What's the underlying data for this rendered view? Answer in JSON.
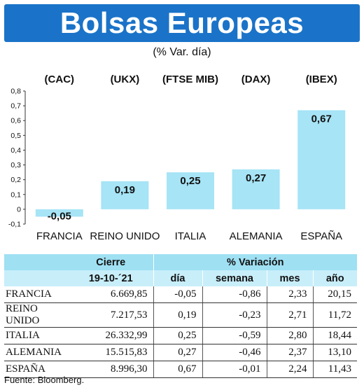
{
  "header": {
    "title": "Bolsas Europeas",
    "subtitle": "(% Var. día)"
  },
  "chart_data": {
    "type": "bar",
    "title": "Bolsas Europeas",
    "subtitle": "(% Var. día)",
    "categories": [
      "FRANCIA",
      "REINO UNIDO",
      "ITALIA",
      "ALEMANIA",
      "ESPAÑA"
    ],
    "index_labels": [
      "(CAC)",
      "(UKX)",
      "(FTSE MIB)",
      "(DAX)",
      "(IBEX)"
    ],
    "values": [
      -0.05,
      0.19,
      0.25,
      0.27,
      0.67
    ],
    "value_labels": [
      "-0,05",
      "0,19",
      "0,25",
      "0,27",
      "0,67"
    ],
    "ylim": [
      -0.1,
      0.8
    ],
    "yticks": [
      "-0,1",
      "0",
      "0,1",
      "0,2",
      "0,3",
      "0,4",
      "0,5",
      "0,6",
      "0,7",
      "0,8"
    ],
    "bar_color": "#a6e4f6",
    "grid": false
  },
  "table": {
    "headers": {
      "cierre": "Cierre",
      "variacion": "% Variación",
      "fecha": "19-10-´21",
      "dia": "día",
      "semana": "semana",
      "mes": "mes",
      "ano": "año"
    },
    "rows": [
      {
        "country": "FRANCIA",
        "cierre": "6.669,85",
        "dia": "-0,05",
        "semana": "-0,86",
        "mes": "2,33",
        "ano": "20,15"
      },
      {
        "country": "REINO UNIDO",
        "cierre": "7.217,53",
        "dia": "0,19",
        "semana": "-0,23",
        "mes": "2,71",
        "ano": "11,72"
      },
      {
        "country": "ITALIA",
        "cierre": "26.332,99",
        "dia": "0,25",
        "semana": "-0,59",
        "mes": "2,80",
        "ano": "18,44"
      },
      {
        "country": "ALEMANIA",
        "cierre": "15.515,83",
        "dia": "0,27",
        "semana": "-0,46",
        "mes": "2,37",
        "ano": "13,10"
      },
      {
        "country": "ESPAÑA",
        "cierre": "8.996,30",
        "dia": "0,67",
        "semana": "-0,01",
        "mes": "2,24",
        "ano": "11,43"
      }
    ]
  },
  "source": "Fuente: Bloomberg."
}
